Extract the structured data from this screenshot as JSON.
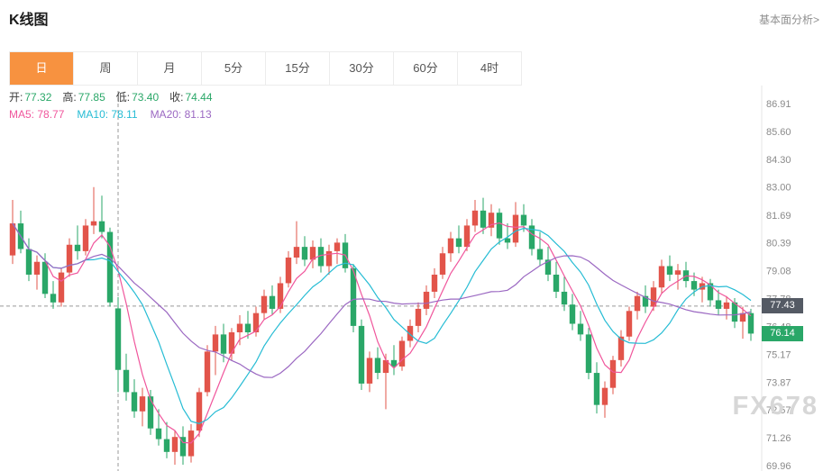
{
  "colors": {
    "accent": "#f79240",
    "green": "#2aa768"
  },
  "header": {
    "title": "K线图",
    "link": "基本面分析>"
  },
  "tabs": {
    "items": [
      {
        "label": "日",
        "active": true
      },
      {
        "label": "周",
        "active": false
      },
      {
        "label": "月",
        "active": false
      },
      {
        "label": "5分",
        "active": false
      },
      {
        "label": "15分",
        "active": false
      },
      {
        "label": "30分",
        "active": false
      },
      {
        "label": "60分",
        "active": false
      },
      {
        "label": "4时",
        "active": false
      }
    ]
  },
  "legend": {
    "ohlc": [
      {
        "label": "开:",
        "value": "77.32"
      },
      {
        "label": "高:",
        "value": "77.85"
      },
      {
        "label": "低:",
        "value": "73.40"
      },
      {
        "label": "收:",
        "value": "74.44"
      }
    ],
    "ma": [
      {
        "label": "MA5:",
        "value": "78.77"
      },
      {
        "label": "MA10:",
        "value": "78.11"
      },
      {
        "label": "MA20:",
        "value": "81.13"
      }
    ]
  },
  "watermark": "FX678",
  "chart_data": {
    "type": "candlestick",
    "title": "K线图 daily OHLC chart",
    "y_axis": {
      "ticks": [
        "86.91",
        "85.60",
        "84.30",
        "83.00",
        "81.69",
        "80.39",
        "79.08",
        "77.78",
        "76.48",
        "75.17",
        "73.87",
        "72.57",
        "71.26",
        "69.96"
      ],
      "range": [
        69.96,
        86.91
      ]
    },
    "selected_candle": {
      "open": 77.32,
      "high": 77.85,
      "low": 73.4,
      "close": 74.44
    },
    "crosshair": {
      "index": 13,
      "price": 77.43
    },
    "price_markers": [
      {
        "label": "77.43",
        "price": 77.43,
        "color": "#545a64"
      },
      {
        "label": "76.14",
        "price": 76.14,
        "color": "#2aa768"
      }
    ],
    "ma_series": [
      {
        "name": "MA5",
        "window": 5,
        "value_at_crosshair": 78.77,
        "color": "#f0569c"
      },
      {
        "name": "MA10",
        "window": 10,
        "value_at_crosshair": 78.11,
        "color": "#26bcd4"
      },
      {
        "name": "MA20",
        "window": 20,
        "value_at_crosshair": 81.13,
        "color": "#9b68c2"
      }
    ],
    "colors": {
      "up": "#e2544a",
      "down": "#2aa768",
      "crosshair": "#999999",
      "axis_line": "#e4e4e4",
      "tick_text": "#8a8a8a"
    },
    "candles": [
      [
        79.8,
        82.4,
        79.4,
        81.3
      ],
      [
        81.3,
        81.9,
        79.9,
        80.1
      ],
      [
        80.1,
        80.6,
        78.6,
        78.9
      ],
      [
        78.9,
        79.8,
        78.2,
        79.5
      ],
      [
        79.5,
        79.9,
        77.8,
        78.0
      ],
      [
        78.0,
        78.6,
        77.3,
        77.6
      ],
      [
        77.6,
        79.2,
        77.4,
        79.0
      ],
      [
        79.0,
        80.6,
        78.8,
        80.3
      ],
      [
        80.3,
        81.2,
        79.6,
        80.0
      ],
      [
        80.0,
        81.5,
        79.8,
        81.2
      ],
      [
        81.2,
        83.0,
        80.8,
        81.4
      ],
      [
        81.4,
        82.6,
        80.6,
        80.9
      ],
      [
        80.9,
        81.1,
        77.4,
        77.6
      ],
      [
        77.32,
        77.85,
        73.4,
        74.44
      ],
      [
        74.44,
        75.2,
        73.0,
        73.4
      ],
      [
        73.4,
        74.0,
        72.2,
        72.5
      ],
      [
        72.5,
        73.6,
        71.8,
        73.2
      ],
      [
        73.2,
        73.5,
        71.4,
        71.7
      ],
      [
        71.7,
        72.6,
        70.9,
        71.2
      ],
      [
        71.2,
        72.0,
        70.3,
        70.6
      ],
      [
        70.6,
        71.6,
        70.0,
        71.3
      ],
      [
        71.3,
        71.8,
        70.0,
        70.4
      ],
      [
        70.4,
        71.9,
        70.1,
        71.6
      ],
      [
        71.6,
        73.6,
        71.3,
        73.4
      ],
      [
        73.4,
        75.6,
        73.2,
        75.3
      ],
      [
        75.3,
        76.5,
        74.2,
        76.1
      ],
      [
        76.1,
        76.6,
        74.8,
        75.2
      ],
      [
        75.2,
        76.4,
        74.9,
        76.2
      ],
      [
        76.2,
        77.0,
        75.6,
        76.6
      ],
      [
        76.6,
        77.2,
        75.9,
        76.2
      ],
      [
        76.2,
        77.4,
        76.0,
        77.1
      ],
      [
        77.1,
        78.2,
        76.8,
        77.9
      ],
      [
        77.9,
        78.4,
        77.0,
        77.3
      ],
      [
        77.3,
        78.8,
        77.1,
        78.5
      ],
      [
        78.5,
        80.0,
        78.3,
        79.7
      ],
      [
        79.7,
        81.4,
        79.4,
        80.2
      ],
      [
        80.2,
        80.7,
        79.3,
        79.6
      ],
      [
        79.6,
        80.5,
        79.2,
        80.2
      ],
      [
        80.2,
        80.6,
        79.0,
        79.3
      ],
      [
        79.3,
        80.3,
        78.9,
        80.0
      ],
      [
        80.0,
        80.6,
        79.4,
        80.4
      ],
      [
        80.4,
        80.8,
        79.0,
        79.2
      ],
      [
        79.2,
        79.4,
        76.2,
        76.5
      ],
      [
        76.5,
        76.8,
        73.5,
        73.8
      ],
      [
        73.8,
        75.3,
        73.4,
        75.0
      ],
      [
        75.0,
        75.5,
        74.0,
        74.3
      ],
      [
        74.3,
        75.2,
        72.6,
        74.9
      ],
      [
        74.9,
        75.6,
        74.2,
        74.6
      ],
      [
        74.6,
        76.0,
        74.4,
        75.8
      ],
      [
        75.8,
        76.8,
        75.5,
        76.5
      ],
      [
        76.5,
        77.6,
        76.2,
        77.3
      ],
      [
        77.3,
        78.4,
        77.0,
        78.1
      ],
      [
        78.1,
        79.2,
        77.8,
        78.9
      ],
      [
        78.9,
        80.2,
        78.7,
        79.9
      ],
      [
        79.9,
        80.9,
        79.5,
        80.6
      ],
      [
        80.6,
        81.2,
        79.9,
        80.2
      ],
      [
        80.2,
        81.5,
        80.0,
        81.2
      ],
      [
        81.2,
        82.4,
        80.9,
        81.9
      ],
      [
        81.9,
        82.5,
        80.8,
        81.1
      ],
      [
        81.1,
        82.2,
        80.7,
        81.8
      ],
      [
        81.8,
        82.0,
        80.3,
        80.6
      ],
      [
        80.6,
        81.3,
        80.1,
        80.4
      ],
      [
        80.4,
        82.3,
        80.2,
        81.7
      ],
      [
        81.7,
        82.2,
        80.9,
        81.2
      ],
      [
        81.2,
        81.5,
        79.8,
        80.1
      ],
      [
        80.1,
        80.9,
        79.3,
        79.6
      ],
      [
        79.6,
        80.2,
        78.6,
        78.9
      ],
      [
        78.9,
        79.5,
        77.8,
        78.1
      ],
      [
        78.1,
        78.8,
        77.2,
        77.5
      ],
      [
        77.5,
        78.0,
        76.3,
        76.6
      ],
      [
        76.6,
        77.2,
        75.8,
        76.1
      ],
      [
        76.1,
        76.4,
        74.0,
        74.3
      ],
      [
        74.3,
        74.8,
        72.4,
        72.8
      ],
      [
        72.8,
        73.9,
        72.2,
        73.6
      ],
      [
        73.6,
        75.1,
        73.3,
        74.9
      ],
      [
        74.9,
        76.3,
        74.6,
        76.0
      ],
      [
        76.0,
        77.4,
        75.8,
        77.2
      ],
      [
        77.2,
        78.1,
        76.8,
        77.9
      ],
      [
        77.9,
        78.4,
        77.1,
        77.4
      ],
      [
        77.4,
        78.6,
        77.2,
        78.3
      ],
      [
        78.3,
        79.6,
        78.0,
        79.3
      ],
      [
        79.3,
        79.8,
        78.6,
        78.9
      ],
      [
        78.9,
        79.4,
        78.2,
        79.1
      ],
      [
        79.1,
        79.5,
        78.3,
        78.6
      ],
      [
        78.6,
        79.0,
        77.9,
        78.2
      ],
      [
        78.2,
        78.8,
        77.6,
        78.5
      ],
      [
        78.5,
        78.7,
        77.4,
        77.7
      ],
      [
        77.7,
        78.2,
        77.0,
        77.3
      ],
      [
        77.3,
        77.9,
        76.8,
        77.6
      ],
      [
        77.6,
        77.8,
        76.4,
        76.7
      ],
      [
        76.7,
        77.4,
        75.9,
        77.1
      ],
      [
        77.1,
        77.3,
        75.8,
        76.14
      ]
    ]
  }
}
